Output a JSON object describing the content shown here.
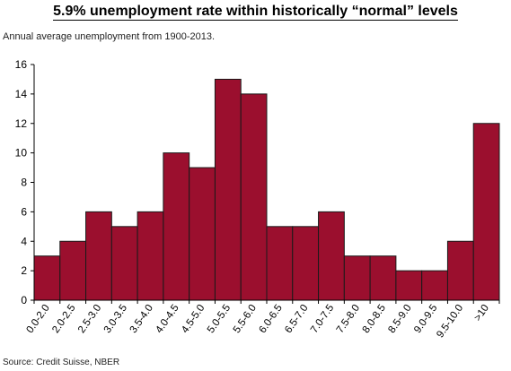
{
  "title": "5.9% unemployment rate within historically “normal” levels",
  "subtitle": "Annual average unemployment from 1900-2013.",
  "source": "Source: Credit Suisse, NBER",
  "colors": {
    "bar": "#9b0f2e",
    "bar_edge": "#1a1a1a",
    "axis": "#000000"
  },
  "chart_data": {
    "type": "bar",
    "categories": [
      "0.0-2.0",
      "2.0-2.5",
      "2.5-3.0",
      "3.0-3.5",
      "3.5-4.0",
      "4.0-4.5",
      "4.5-5.0",
      "5.0-5.5",
      "5.5-6.0",
      "6.0-6.5",
      "6.5-7.0",
      "7.0-7.5",
      "7.5-8.0",
      "8.0-8.5",
      "8.5-9.0",
      "9.0-9.5",
      "9.5-10.0",
      ">10"
    ],
    "values": [
      3,
      4,
      6,
      5,
      6,
      10,
      9,
      15,
      14,
      5,
      5,
      6,
      3,
      3,
      2,
      2,
      4,
      12
    ],
    "ylim": [
      0,
      16
    ],
    "yticks": [
      0,
      2,
      4,
      6,
      8,
      10,
      12,
      14,
      16
    ],
    "xlabel": "",
    "ylabel": "",
    "grid": false,
    "legend": "none"
  }
}
